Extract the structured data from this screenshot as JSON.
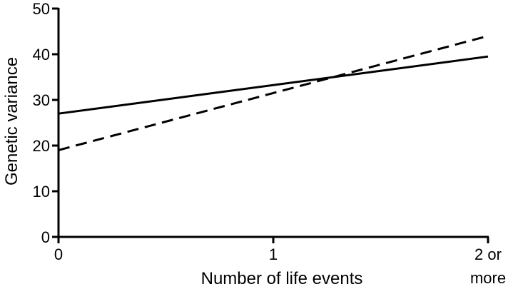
{
  "chart_data": {
    "type": "line",
    "title": "",
    "xlabel": "Number of life events",
    "ylabel": "Genetic variance",
    "x_categories": [
      "0",
      "1",
      "2 or more"
    ],
    "x_tick_lines": [
      [
        "0"
      ],
      [
        "1"
      ],
      [
        "2 or",
        "more"
      ]
    ],
    "ylim": [
      0,
      50
    ],
    "yticks": [
      0,
      10,
      20,
      30,
      40,
      50
    ],
    "grid": false,
    "legend": "none",
    "series": [
      {
        "style": "solid",
        "x": [
          0,
          2
        ],
        "y": [
          27,
          39.5
        ]
      },
      {
        "style": "dashed",
        "x": [
          0,
          2
        ],
        "y": [
          19,
          44
        ]
      }
    ]
  }
}
